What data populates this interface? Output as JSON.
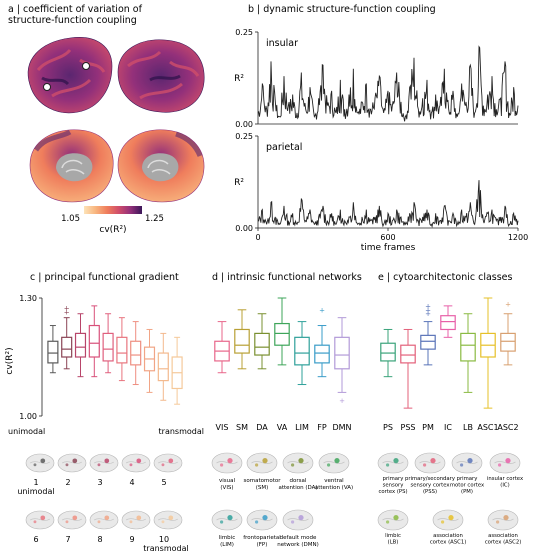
{
  "panels": {
    "a": {
      "title_line1": "a | coefficient of variation of",
      "title_line2": "structure-function coupling",
      "colorbar_min": "1.05",
      "colorbar_max": "1.25",
      "colorbar_label": "cv(R²)",
      "colors": [
        "#fde3b8",
        "#f8b57e",
        "#ef7d5c",
        "#cf4d6a",
        "#93307a",
        "#5b2670",
        "#2b1149"
      ]
    },
    "b": {
      "title": "b | dynamic structure-function coupling"
    },
    "c": {
      "title": "c | principal functional gradient",
      "left_note": "unimodal",
      "right_note": "transmodal"
    },
    "d": {
      "title": "d | intrinsic functional networks"
    },
    "e": {
      "title": "e | cytoarchitectonic classes"
    }
  },
  "legend_c": {
    "items": [
      "1",
      "2",
      "3",
      "4",
      "5",
      "6",
      "7",
      "8",
      "9",
      "10"
    ],
    "item1_sub": "unimodal",
    "item10_sub": "transmodal"
  },
  "legend_d": {
    "items": [
      [
        "visual",
        "(VIS)"
      ],
      [
        "somatomotor",
        "(SM)"
      ],
      [
        "dorsal",
        "attention (DA)"
      ],
      [
        "ventral",
        "attention (VA)"
      ],
      [
        "limbic",
        "(LIM)"
      ],
      [
        "frontoparietal",
        "(FP)"
      ],
      [
        "default mode",
        "network (DMN)"
      ]
    ]
  },
  "legend_e": {
    "items": [
      [
        "primary",
        "sensory",
        "cortex (PS)"
      ],
      [
        "primary/secondary",
        "sensory cortex",
        "(PSS)"
      ],
      [
        "primary",
        "motor cortex",
        "(PM)"
      ],
      [
        "insular cortex",
        "(IC)"
      ],
      [
        "limbic",
        "(LB)"
      ],
      [
        "association",
        "cortex (ASC1)"
      ],
      [
        "association",
        "cortex (ASC2)"
      ]
    ]
  },
  "chart_data": [
    {
      "id": "b-insular",
      "type": "line",
      "label": "insular",
      "ylabel": "R²",
      "xlim": [
        0,
        1200
      ],
      "ylim": [
        0,
        0.25
      ],
      "yticks": [
        "0.25",
        "0.00"
      ],
      "series": [
        {
          "color": "#222222",
          "x": [
            0,
            20,
            40,
            60,
            80,
            100,
            120,
            140,
            160,
            180,
            200,
            220,
            240,
            260,
            280,
            300,
            320,
            340,
            360,
            380,
            400,
            420,
            440,
            460,
            480,
            500,
            520,
            540,
            560,
            580,
            600,
            620,
            640,
            660,
            680,
            700,
            720,
            740,
            760,
            780,
            800,
            820,
            840,
            860,
            880,
            900,
            920,
            940,
            960,
            980,
            1000,
            1020,
            1040,
            1060,
            1080,
            1100,
            1120,
            1140,
            1160,
            1180,
            1200
          ],
          "y": [
            0.03,
            0.11,
            0.04,
            0.17,
            0.06,
            0.02,
            0.13,
            0.05,
            0.08,
            0.03,
            0.14,
            0.04,
            0.1,
            0.02,
            0.07,
            0.16,
            0.05,
            0.09,
            0.03,
            0.12,
            0.04,
            0.08,
            0.15,
            0.03,
            0.06,
            0.11,
            0.04,
            0.07,
            0.13,
            0.03,
            0.09,
            0.05,
            0.14,
            0.06,
            0.02,
            0.1,
            0.18,
            0.04,
            0.07,
            0.12,
            0.03,
            0.08,
            0.05,
            0.15,
            0.04,
            0.09,
            0.02,
            0.11,
            0.06,
            0.16,
            0.03,
            0.21,
            0.05,
            0.08,
            0.13,
            0.04,
            0.07,
            0.17,
            0.03,
            0.1,
            0.05
          ]
        }
      ]
    },
    {
      "id": "b-parietal",
      "type": "line",
      "label": "parietal",
      "ylabel": "R²",
      "xlabel": "time frames",
      "xlim": [
        0,
        1200
      ],
      "ylim": [
        0,
        0.25
      ],
      "yticks": [
        "0.25",
        "0.00"
      ],
      "xticks": [
        "0",
        "600",
        "1200"
      ],
      "series": [
        {
          "color": "#222222",
          "x": [
            0,
            20,
            40,
            60,
            80,
            100,
            120,
            140,
            160,
            180,
            200,
            220,
            240,
            260,
            280,
            300,
            320,
            340,
            360,
            380,
            400,
            420,
            440,
            460,
            480,
            500,
            520,
            540,
            560,
            580,
            600,
            620,
            640,
            660,
            680,
            700,
            720,
            740,
            760,
            780,
            800,
            820,
            840,
            860,
            880,
            900,
            920,
            940,
            960,
            980,
            1000,
            1020,
            1040,
            1060,
            1080,
            1100,
            1120,
            1140,
            1160,
            1180,
            1200
          ],
          "y": [
            0.02,
            0.05,
            0.01,
            0.07,
            0.03,
            0.01,
            0.06,
            0.02,
            0.04,
            0.01,
            0.08,
            0.02,
            0.05,
            0.01,
            0.03,
            0.06,
            0.02,
            0.04,
            0.01,
            0.05,
            0.02,
            0.03,
            0.07,
            0.01,
            0.03,
            0.05,
            0.02,
            0.03,
            0.06,
            0.01,
            0.04,
            0.02,
            0.05,
            0.03,
            0.01,
            0.04,
            0.07,
            0.02,
            0.03,
            0.05,
            0.01,
            0.04,
            0.02,
            0.06,
            0.02,
            0.04,
            0.01,
            0.05,
            0.03,
            0.07,
            0.01,
            0.13,
            0.02,
            0.04,
            0.05,
            0.02,
            0.03,
            0.06,
            0.01,
            0.04,
            0.02
          ]
        }
      ]
    },
    {
      "id": "c",
      "type": "box",
      "ylabel": "cv(R²)",
      "ylim": [
        1.0,
        1.3
      ],
      "yticks": [
        "1.30",
        "1.00"
      ],
      "categories": [
        "1",
        "2",
        "3",
        "4",
        "5",
        "6",
        "7",
        "8",
        "9",
        "10"
      ],
      "boxes": [
        {
          "color": "#5a5a5a",
          "min": 1.11,
          "q1": 1.135,
          "median": 1.16,
          "q3": 1.19,
          "max": 1.23
        },
        {
          "color": "#8a4455",
          "min": 1.12,
          "q1": 1.15,
          "median": 1.17,
          "q3": 1.2,
          "max": 1.25,
          "outliers": [
            1.265,
            1.275
          ]
        },
        {
          "color": "#b8456a",
          "min": 1.1,
          "q1": 1.15,
          "median": 1.175,
          "q3": 1.21,
          "max": 1.26
        },
        {
          "color": "#d8507a",
          "min": 1.1,
          "q1": 1.15,
          "median": 1.185,
          "q3": 1.23,
          "max": 1.28
        },
        {
          "color": "#e0607e",
          "min": 1.11,
          "q1": 1.14,
          "median": 1.17,
          "q3": 1.21,
          "max": 1.26
        },
        {
          "color": "#e8747e",
          "min": 1.09,
          "q1": 1.135,
          "median": 1.16,
          "q3": 1.2,
          "max": 1.25
        },
        {
          "color": "#ee8e80",
          "min": 1.08,
          "q1": 1.13,
          "median": 1.155,
          "q3": 1.19,
          "max": 1.24
        },
        {
          "color": "#f1a586",
          "min": 1.06,
          "q1": 1.115,
          "median": 1.145,
          "q3": 1.175,
          "max": 1.22
        },
        {
          "color": "#f3b98e",
          "min": 1.04,
          "q1": 1.09,
          "median": 1.12,
          "q3": 1.16,
          "max": 1.21
        },
        {
          "color": "#f5c99a",
          "min": 1.03,
          "q1": 1.07,
          "median": 1.11,
          "q3": 1.15,
          "max": 1.2
        }
      ]
    },
    {
      "id": "d",
      "type": "box",
      "ylim": [
        1.0,
        1.3
      ],
      "categories": [
        "VIS",
        "SM",
        "DA",
        "VA",
        "LIM",
        "FP",
        "DMN"
      ],
      "boxes": [
        {
          "color": "#e8668a",
          "min": 1.11,
          "q1": 1.14,
          "median": 1.165,
          "q3": 1.19,
          "max": 1.24
        },
        {
          "color": "#b8a034",
          "min": 1.12,
          "q1": 1.16,
          "median": 1.18,
          "q3": 1.22,
          "max": 1.27
        },
        {
          "color": "#7a9030",
          "min": 1.12,
          "q1": 1.155,
          "median": 1.175,
          "q3": 1.21,
          "max": 1.26
        },
        {
          "color": "#3ea55a",
          "min": 1.13,
          "q1": 1.18,
          "median": 1.21,
          "q3": 1.235,
          "max": 1.3
        },
        {
          "color": "#2ea09a",
          "min": 1.08,
          "q1": 1.13,
          "median": 1.16,
          "q3": 1.2,
          "max": 1.24
        },
        {
          "color": "#3a9cc8",
          "min": 1.1,
          "q1": 1.135,
          "median": 1.16,
          "q3": 1.18,
          "max": 1.23,
          "outliers": [
            1.27
          ]
        },
        {
          "color": "#b29ad8",
          "min": 1.06,
          "q1": 1.12,
          "median": 1.155,
          "q3": 1.2,
          "max": 1.25,
          "outliers": [
            1.04
          ]
        }
      ]
    },
    {
      "id": "e",
      "type": "box",
      "ylim": [
        1.0,
        1.3
      ],
      "categories": [
        "PS",
        "PSS",
        "PM",
        "IC",
        "LB",
        "ASC1",
        "ASC2"
      ],
      "boxes": [
        {
          "color": "#3aa37a",
          "min": 1.1,
          "q1": 1.14,
          "median": 1.16,
          "q3": 1.185,
          "max": 1.22
        },
        {
          "color": "#e3607a",
          "min": 1.02,
          "q1": 1.135,
          "median": 1.155,
          "q3": 1.18,
          "max": 1.22
        },
        {
          "color": "#5a74b8",
          "min": 1.13,
          "q1": 1.17,
          "median": 1.19,
          "q3": 1.205,
          "max": 1.24,
          "outliers": [
            1.26,
            1.27,
            1.28
          ]
        },
        {
          "color": "#e860a8",
          "min": 1.2,
          "q1": 1.22,
          "median": 1.24,
          "q3": 1.255,
          "max": 1.28
        },
        {
          "color": "#8aba42",
          "min": 1.06,
          "q1": 1.14,
          "median": 1.18,
          "q3": 1.21,
          "max": 1.26
        },
        {
          "color": "#e6c028",
          "min": 1.02,
          "q1": 1.15,
          "median": 1.18,
          "q3": 1.21,
          "max": 1.3
        },
        {
          "color": "#d8a070",
          "min": 1.13,
          "q1": 1.165,
          "median": 1.19,
          "q3": 1.21,
          "max": 1.26,
          "outliers": [
            1.285
          ]
        }
      ]
    }
  ]
}
